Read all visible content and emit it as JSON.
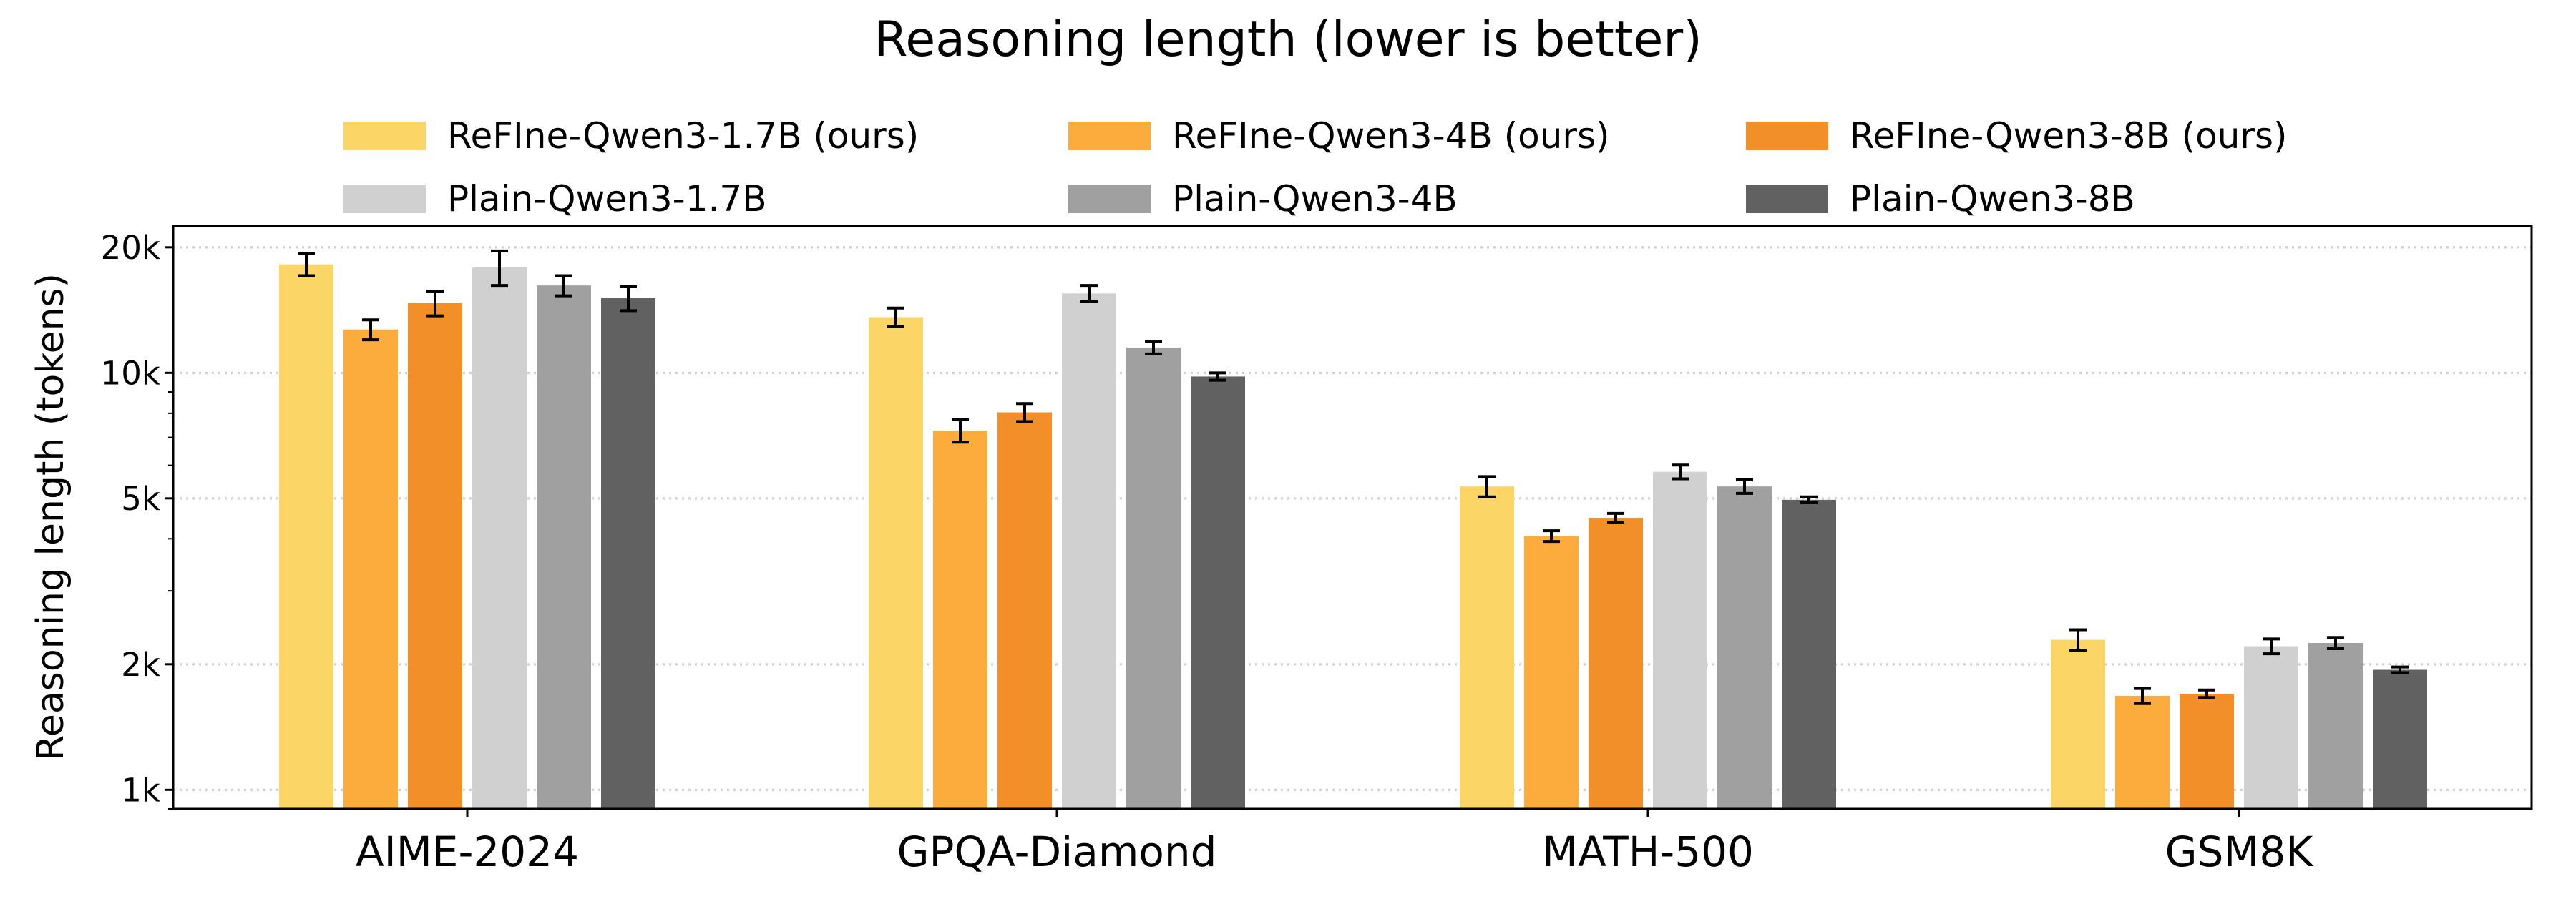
{
  "chart_data": {
    "type": "bar",
    "title": "Reasoning length (lower is better)",
    "xlabel": "",
    "ylabel": "Reasoning length (tokens)",
    "yscale": "log",
    "ylim": [
      900,
      22500
    ],
    "yticks": [
      1000,
      2000,
      5000,
      10000,
      20000
    ],
    "ytick_labels": [
      "1k",
      "2k",
      "5k",
      "10k",
      "20k"
    ],
    "grid": "y, dotted",
    "legend_placement": "top, 3 columns",
    "categories": [
      "AIME-2024",
      "GPQA-Diamond",
      "MATH-500",
      "GSM8K"
    ],
    "series": [
      {
        "name": "ReFIne-Qwen3-1.7B (ours)",
        "color": "#FBD667",
        "values": [
          18200,
          13600,
          5340,
          2290
        ],
        "errors": [
          1100,
          700,
          300,
          130
        ]
      },
      {
        "name": "ReFIne-Qwen3-4B (ours)",
        "color": "#FCAC3C",
        "values": [
          12700,
          7270,
          4060,
          1680
        ],
        "errors": [
          700,
          450,
          120,
          70
        ]
      },
      {
        "name": "ReFIne-Qwen3-8B (ours)",
        "color": "#F38F28",
        "values": [
          14700,
          8040,
          4490,
          1700
        ],
        "errors": [
          1000,
          400,
          110,
          35
        ]
      },
      {
        "name": "Plain-Qwen3-1.7B",
        "color": "#D0D0D0",
        "values": [
          17900,
          15500,
          5790,
          2210
        ],
        "errors": [
          1700,
          700,
          220,
          90
        ]
      },
      {
        "name": "Plain-Qwen3-4B",
        "color": "#A0A0A0",
        "values": [
          16200,
          11500,
          5340,
          2250
        ],
        "errors": [
          900,
          400,
          200,
          70
        ]
      },
      {
        "name": "Plain-Qwen3-8B",
        "color": "#616161",
        "values": [
          15100,
          9800,
          4960,
          1940
        ],
        "errors": [
          1000,
          200,
          80,
          30
        ]
      }
    ]
  }
}
